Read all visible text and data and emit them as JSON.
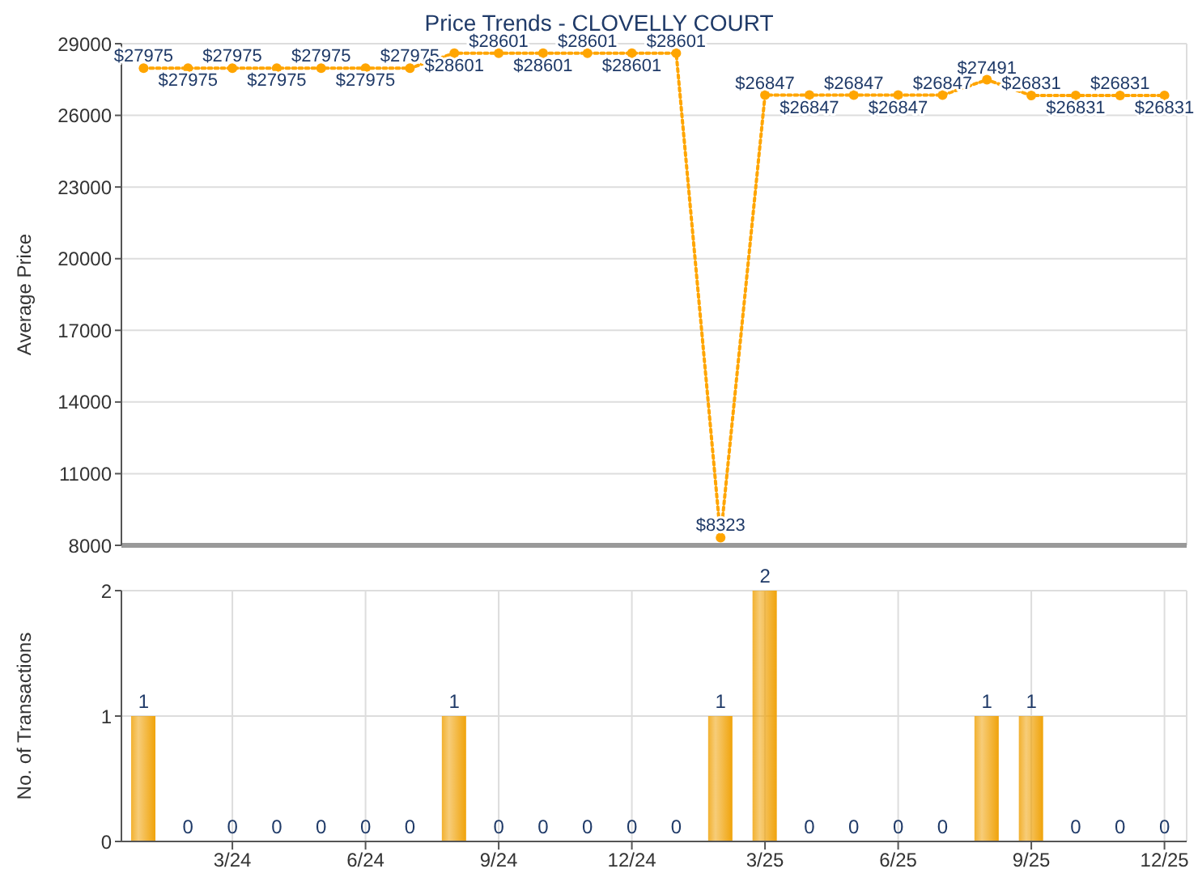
{
  "chart_data": [
    {
      "type": "line",
      "title": "Price Trends - CLOVELLY COURT",
      "ylabel": "Average Price",
      "categories": [
        null,
        null,
        null,
        null,
        null,
        null,
        null,
        null,
        null,
        null,
        null,
        null,
        null,
        null,
        null,
        null,
        null,
        null,
        null,
        null,
        null,
        null,
        null,
        null
      ],
      "series": [
        {
          "color": "#ffa500",
          "values": [
            27975,
            27975,
            27975,
            27975,
            27975,
            27975,
            27975,
            28601,
            28601,
            28601,
            28601,
            28601,
            28601,
            8323,
            26847,
            26847,
            26847,
            26847,
            26847,
            27491,
            26831,
            26831,
            26831,
            26831
          ],
          "value_labels": [
            "$27975",
            "$27975",
            "$27975",
            "$27975",
            "$27975",
            "$27975",
            "$27975",
            "$28601",
            "$28601",
            "$28601",
            "$28601",
            "$28601",
            "$28601",
            "$8323",
            "$26847",
            "$26847",
            "$26847",
            "$26847",
            "$26847",
            "$27491",
            "$26831",
            "$26831",
            "$26831",
            "$26831"
          ]
        }
      ],
      "ylim": [
        8000,
        29000
      ],
      "yticks": [
        8000,
        11000,
        14000,
        17000,
        20000,
        23000,
        26000,
        29000
      ],
      "grid": true,
      "marker": "circle",
      "line_style": "dotted",
      "tick_labels": "y"
    },
    {
      "type": "bar",
      "ylabel": "No. of Transactions",
      "categories": [
        null,
        null,
        "3/24",
        null,
        null,
        "6/24",
        null,
        null,
        "9/24",
        null,
        null,
        "12/24",
        null,
        null,
        "3/25",
        null,
        null,
        "6/25",
        null,
        null,
        "9/25",
        null,
        null,
        "12/25"
      ],
      "values": [
        1,
        0,
        0,
        0,
        0,
        0,
        0,
        1,
        0,
        0,
        0,
        0,
        0,
        1,
        2,
        0,
        0,
        0,
        0,
        1,
        1,
        0,
        0,
        0
      ],
      "color": "#f0a30a",
      "ylim": [
        0,
        2
      ],
      "yticks": [
        0,
        1,
        2
      ],
      "grid": true,
      "data_labels": true
    }
  ]
}
